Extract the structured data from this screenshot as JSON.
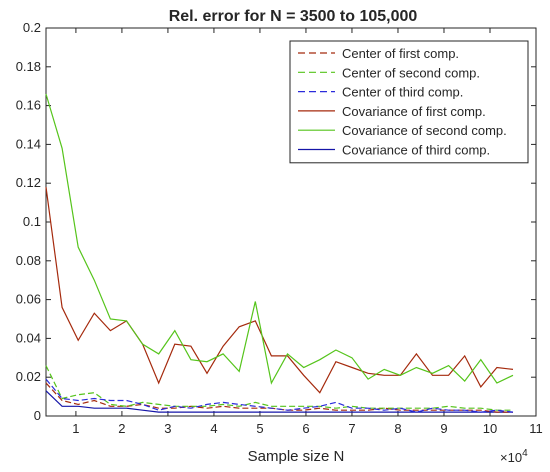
{
  "chart_data": {
    "type": "line",
    "title": "Rel.  error for N = 3500 to 105,000",
    "xlabel": "Sample size N",
    "ylabel": "",
    "x_exponent_label": "×10",
    "x_exponent_power": "4",
    "xlim": [
      0.35,
      11
    ],
    "ylim": [
      0,
      0.2
    ],
    "xticks": [
      1,
      2,
      3,
      4,
      5,
      6,
      7,
      8,
      9,
      10,
      11
    ],
    "xtick_labels": [
      "1",
      "2",
      "3",
      "4",
      "5",
      "6",
      "7",
      "8",
      "9",
      "10",
      "11"
    ],
    "yticks": [
      0,
      0.02,
      0.04,
      0.06,
      0.08,
      0.1,
      0.12,
      0.14,
      0.16,
      0.18,
      0.2
    ],
    "ytick_labels": [
      "0",
      "0.02",
      "0.04",
      "0.06",
      "0.08",
      "0.1",
      "0.12",
      "0.14",
      "0.16",
      "0.18",
      "0.2"
    ],
    "grid": false,
    "legend_position": "top-right",
    "x": [
      0.35,
      0.7,
      1.05,
      1.4,
      1.75,
      2.1,
      2.45,
      2.8,
      3.15,
      3.5,
      3.85,
      4.2,
      4.55,
      4.9,
      5.25,
      5.6,
      5.95,
      6.3,
      6.65,
      7.0,
      7.35,
      7.7,
      8.05,
      8.4,
      8.75,
      9.1,
      9.45,
      9.8,
      10.15,
      10.5
    ],
    "series": [
      {
        "name": "Center of first comp.",
        "color": "#a52a0d",
        "dash": "dashed",
        "values": [
          0.017,
          0.008,
          0.006,
          0.008,
          0.005,
          0.005,
          0.006,
          0.004,
          0.004,
          0.005,
          0.004,
          0.005,
          0.004,
          0.004,
          0.004,
          0.003,
          0.003,
          0.004,
          0.003,
          0.003,
          0.003,
          0.004,
          0.003,
          0.003,
          0.003,
          0.003,
          0.003,
          0.003,
          0.002,
          0.002
        ]
      },
      {
        "name": "Center of second comp.",
        "color": "#55c41b",
        "dash": "dashed",
        "values": [
          0.026,
          0.009,
          0.011,
          0.012,
          0.006,
          0.005,
          0.007,
          0.006,
          0.005,
          0.005,
          0.005,
          0.006,
          0.005,
          0.007,
          0.005,
          0.005,
          0.005,
          0.005,
          0.004,
          0.005,
          0.004,
          0.004,
          0.004,
          0.004,
          0.004,
          0.005,
          0.004,
          0.004,
          0.003,
          0.003
        ]
      },
      {
        "name": "Center of third comp.",
        "color": "#2b2bdb",
        "dash": "dashed",
        "values": [
          0.019,
          0.009,
          0.008,
          0.009,
          0.008,
          0.008,
          0.006,
          0.003,
          0.005,
          0.004,
          0.006,
          0.007,
          0.006,
          0.005,
          0.004,
          0.003,
          0.004,
          0.005,
          0.007,
          0.004,
          0.004,
          0.003,
          0.004,
          0.002,
          0.004,
          0.003,
          0.003,
          0.002,
          0.003,
          0.002
        ]
      },
      {
        "name": "Covariance of first comp.",
        "color": "#a52a0d",
        "dash": "solid",
        "values": [
          0.118,
          0.056,
          0.039,
          0.053,
          0.044,
          0.049,
          0.037,
          0.017,
          0.037,
          0.036,
          0.022,
          0.036,
          0.046,
          0.049,
          0.031,
          0.031,
          0.021,
          0.012,
          0.028,
          0.025,
          0.022,
          0.021,
          0.021,
          0.032,
          0.021,
          0.021,
          0.031,
          0.015,
          0.025,
          0.024
        ]
      },
      {
        "name": "Covariance of second comp.",
        "color": "#55c41b",
        "dash": "solid",
        "values": [
          0.166,
          0.138,
          0.087,
          0.07,
          0.05,
          0.049,
          0.037,
          0.032,
          0.044,
          0.029,
          0.028,
          0.032,
          0.023,
          0.059,
          0.017,
          0.032,
          0.025,
          0.029,
          0.034,
          0.03,
          0.019,
          0.024,
          0.021,
          0.025,
          0.022,
          0.026,
          0.018,
          0.029,
          0.017,
          0.021
        ]
      },
      {
        "name": "Covariance of third comp.",
        "color": "#1515a8",
        "dash": "solid",
        "values": [
          0.013,
          0.005,
          0.005,
          0.004,
          0.004,
          0.004,
          0.003,
          0.002,
          0.002,
          0.002,
          0.002,
          0.002,
          0.002,
          0.002,
          0.002,
          0.002,
          0.002,
          0.002,
          0.002,
          0.002,
          0.002,
          0.002,
          0.002,
          0.002,
          0.002,
          0.002,
          0.002,
          0.002,
          0.002,
          0.002
        ]
      }
    ]
  }
}
